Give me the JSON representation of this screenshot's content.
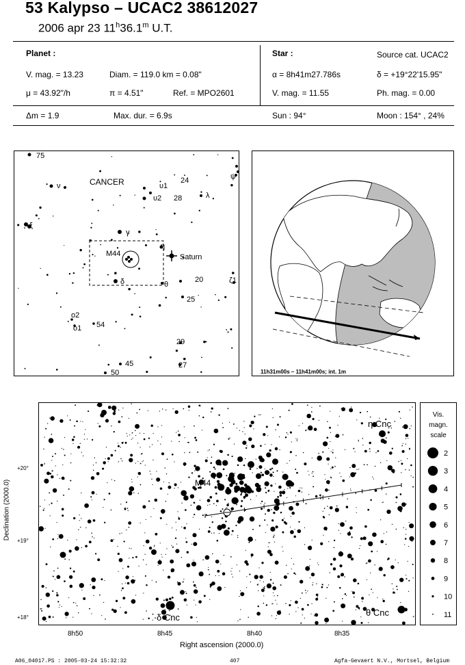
{
  "header": {
    "title": "53 Kalypso  –  UCAC2 38612027",
    "date": "2006 apr 23  11",
    "hours_sup": "h",
    "minutes": "36.1",
    "minutes_sup": "m",
    "utc": " U.T."
  },
  "planet": {
    "label": "Planet :",
    "vmag": "V. mag. = 13.23",
    "diam": "Diam. = 119.0 km = 0.08\"",
    "mu": "μ = 43.92\"/h",
    "pi": "π = 4.51\"",
    "ref": "Ref. = MPO2601"
  },
  "star": {
    "label": "Star :",
    "source": "Source cat. UCAC2",
    "alpha": "α = 8h41m27.786s",
    "delta": "δ = +19°22'15.95\"",
    "vmag": "V. mag. = 11.55",
    "phmag": "Ph. mag. = 0.00"
  },
  "event": {
    "dm": "Δm = 1.9",
    "maxdur": "Max. dur. = 6.9s",
    "sun": "Sun : 94°",
    "moon": "Moon : 154° , 24%"
  },
  "finder": {
    "constellation": "CANCER",
    "labels": [
      "75",
      "ν",
      "υ1",
      "24",
      "υ2",
      "28",
      "λ",
      "ψ",
      "ξ",
      "γ",
      "η",
      "M44",
      "Saturn",
      "δ",
      "θ",
      "20",
      "ζ1",
      "25",
      "ο2",
      "ο1",
      "54",
      "29",
      "45",
      "27",
      "50"
    ]
  },
  "globe": {
    "caption": "11h31m00s – 11h41m00s; int. 1m"
  },
  "chart": {
    "ylabel": "Declination (2000.0)",
    "xlabel": "Right ascension (2000.0)",
    "yticks": [
      "+20°",
      "+19°",
      "+18°"
    ],
    "xticks": [
      "8h50",
      "8h45",
      "8h40",
      "8h35"
    ],
    "labels": {
      "eta": "η Cnc",
      "m44": "M44",
      "delta": "δ Cnc",
      "theta": "θ Cnc"
    }
  },
  "scale": {
    "title": [
      "Vis.",
      "magn.",
      "scale"
    ],
    "mags": [
      "2",
      "3",
      "4",
      "5",
      "6",
      "7",
      "8",
      "9",
      "10",
      "11"
    ]
  },
  "footer": {
    "file": "A06_04017.PS : 2005-03-24 15:32:32",
    "page": "407",
    "company": "Agfa-Gevaert N.V., Mortsel, Belgium"
  }
}
